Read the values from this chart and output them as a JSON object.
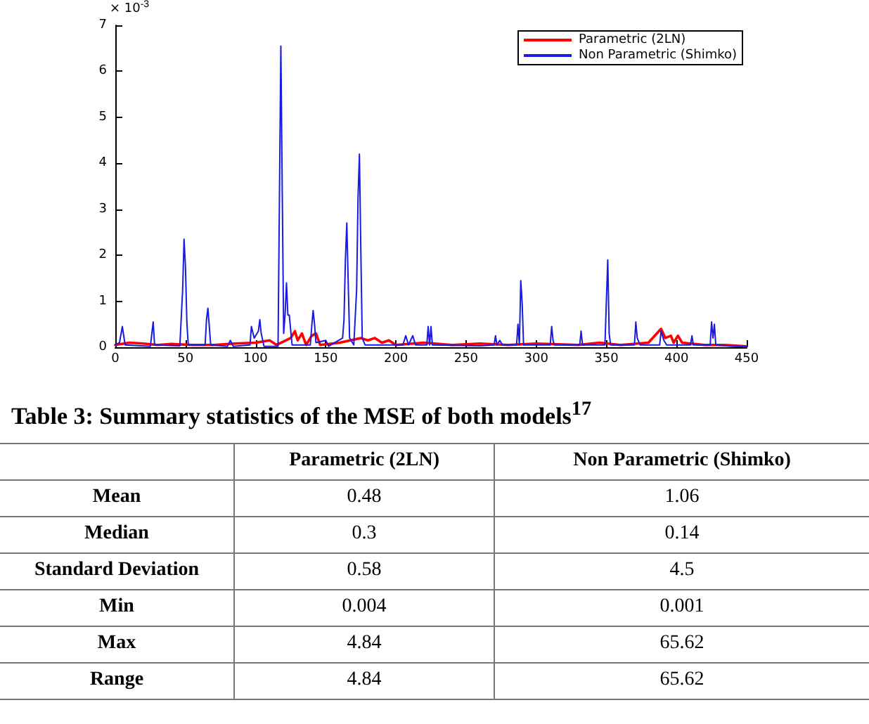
{
  "chart_data": [
    {
      "type": "line",
      "annotations": [
        "× 10$^{-3}$"
      ],
      "legend": "top right",
      "grid": false,
      "marker": "none",
      "line_style": "solid",
      "xlim": [
        0,
        450
      ],
      "xticks": [
        0,
        50,
        100,
        150,
        200,
        250,
        300,
        350,
        400,
        450
      ],
      "ylim": [
        0,
        7
      ],
      "yticks": [
        0,
        1,
        2,
        3,
        4,
        5,
        6,
        7
      ],
      "series": [
        {
          "name": "Parametric (2LN)",
          "color": "#ff0000",
          "x": [
            0,
            10,
            20,
            30,
            40,
            55,
            70,
            85,
            100,
            110,
            115,
            125,
            128,
            130,
            133,
            136,
            140,
            143,
            146,
            160,
            175,
            180,
            185,
            190,
            195,
            200,
            220,
            240,
            260,
            280,
            300,
            330,
            345,
            360,
            380,
            389,
            392,
            396,
            398,
            401,
            404,
            420,
            435,
            450
          ],
          "values": [
            0.05,
            0.1,
            0.08,
            0.05,
            0.07,
            0.05,
            0.05,
            0.08,
            0.1,
            0.15,
            0.05,
            0.2,
            0.35,
            0.15,
            0.3,
            0.05,
            0.25,
            0.3,
            0.05,
            0.1,
            0.2,
            0.15,
            0.2,
            0.1,
            0.15,
            0.05,
            0.1,
            0.05,
            0.08,
            0.05,
            0.08,
            0.05,
            0.1,
            0.05,
            0.1,
            0.4,
            0.2,
            0.25,
            0.1,
            0.25,
            0.1,
            0.05,
            0.05,
            0.02
          ]
        },
        {
          "name": "Non Parametric (Shimko)",
          "color": "#1a1ae0",
          "x": [
            0,
            3,
            5,
            7,
            25,
            27,
            28,
            46,
            48,
            49,
            50,
            51,
            52,
            64,
            65,
            66,
            67,
            68,
            80,
            82,
            84,
            96,
            97,
            99,
            102,
            103,
            104,
            106,
            116,
            117,
            118,
            119,
            120,
            121,
            122,
            123,
            124,
            126,
            139,
            140,
            141,
            142,
            143,
            150,
            152,
            162,
            163,
            164,
            165,
            166,
            167,
            170,
            172,
            173,
            174,
            175,
            176,
            178,
            205,
            207,
            209,
            212,
            214,
            222,
            223,
            224,
            225,
            226,
            260,
            270,
            271,
            272,
            274,
            276,
            286,
            287,
            288,
            289,
            290,
            291,
            310,
            311,
            312,
            313,
            331,
            332,
            333,
            349,
            350,
            351,
            352,
            353,
            370,
            371,
            372,
            374,
            388,
            389,
            391,
            393,
            410,
            411,
            412,
            424,
            425,
            426,
            427,
            428,
            440,
            450
          ],
          "values": [
            0.05,
            0.1,
            0.45,
            0.05,
            0.02,
            0.55,
            0.05,
            0.03,
            1.25,
            2.35,
            1.75,
            0.55,
            0.05,
            0.05,
            0.6,
            0.85,
            0.45,
            0.05,
            0.02,
            0.15,
            0.02,
            0.05,
            0.45,
            0.2,
            0.35,
            0.6,
            0.3,
            0.02,
            0.02,
            3.3,
            6.55,
            3.35,
            0.3,
            0.7,
            1.4,
            0.7,
            0.7,
            0.05,
            0.05,
            0.45,
            0.8,
            0.5,
            0.1,
            0.15,
            0.02,
            0.2,
            0.6,
            1.9,
            2.7,
            1.4,
            0.2,
            0.05,
            1.25,
            3.25,
            4.2,
            2.1,
            0.2,
            0.05,
            0.05,
            0.25,
            0.05,
            0.25,
            0.05,
            0.05,
            0.45,
            0.05,
            0.45,
            0.05,
            0.03,
            0.05,
            0.25,
            0.05,
            0.15,
            0.05,
            0.05,
            0.5,
            0.05,
            1.45,
            0.95,
            0.05,
            0.05,
            0.45,
            0.15,
            0.05,
            0.05,
            0.35,
            0.05,
            0.05,
            1.0,
            1.9,
            0.3,
            0.05,
            0.05,
            0.55,
            0.2,
            0.05,
            0.05,
            0.35,
            0.15,
            0.05,
            0.05,
            0.25,
            0.05,
            0.05,
            0.55,
            0.2,
            0.5,
            0.05,
            0.02,
            0.02
          ]
        }
      ]
    },
    {
      "type": "other",
      "title": "Table 3: Summary statistics of the MSE of both models$^{17}$",
      "categories": [
        "Mean",
        "Median",
        "Standard Deviation",
        "Min",
        "Max",
        "Range"
      ],
      "data_labels": true,
      "series": [
        {
          "name": "Parametric (2LN)",
          "values": [
            0.48,
            0.3,
            0.58,
            0.004,
            4.84,
            4.84
          ]
        },
        {
          "name": "Non Parametric (Shimko)",
          "values": [
            1.06,
            0.14,
            4.5,
            0.001,
            65.62,
            65.62
          ]
        }
      ]
    }
  ]
}
